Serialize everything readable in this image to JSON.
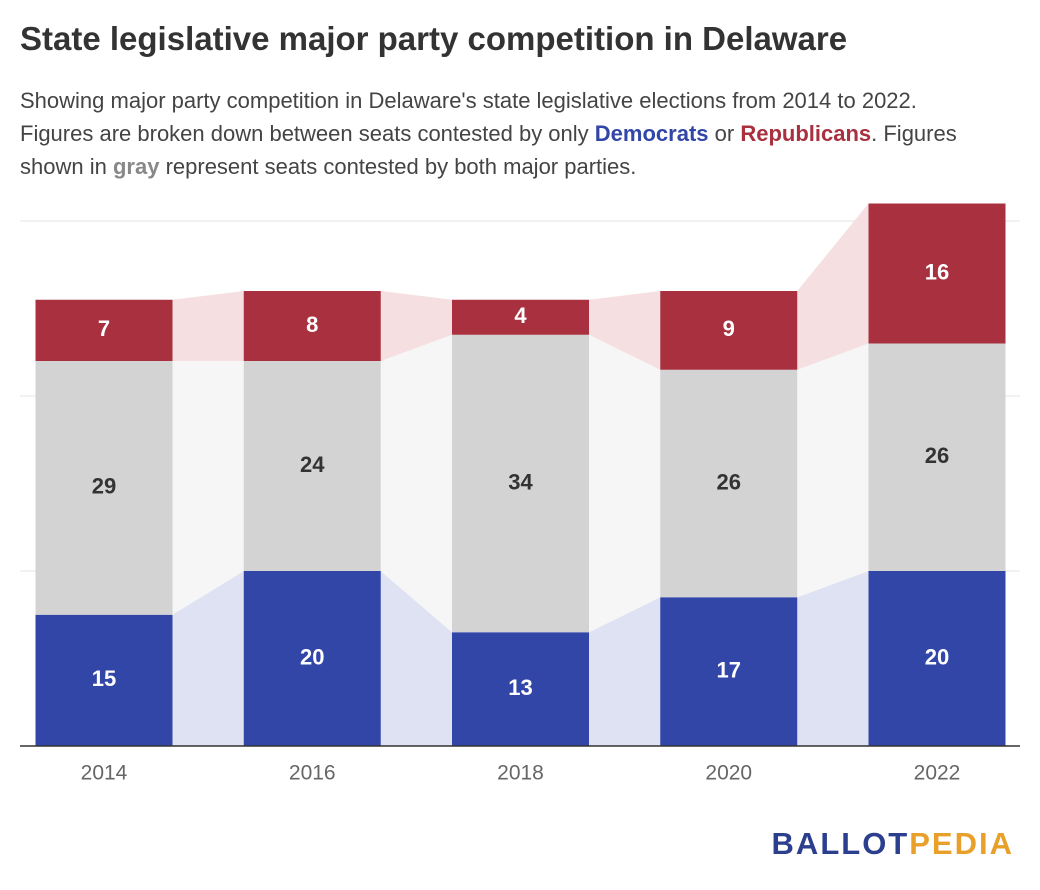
{
  "chart_data": {
    "type": "stacked-bar",
    "title": "State legislative major party competition in Delaware",
    "subtitle_parts": [
      "Showing major party competition in Delaware's state legislative elections from 2014 to 2022.",
      "Figures are broken down between seats contested by only",
      "or",
      ". Figures",
      "shown in",
      "represent seats contested by both major parties."
    ],
    "categories": [
      "2014",
      "2016",
      "2018",
      "2020",
      "2022"
    ],
    "series": [
      {
        "name": "Democrats",
        "color": "#3246a8",
        "band_color": "#dfe2f2",
        "label_color": "#ffffff",
        "values": [
          15,
          20,
          13,
          17,
          20
        ]
      },
      {
        "name": "gray",
        "color": "#d3d3d3",
        "band_color": "#f6f6f6",
        "label_color": "#333333",
        "values": [
          29,
          24,
          34,
          26,
          26
        ]
      },
      {
        "name": "Republicans",
        "color": "#a8303f",
        "band_color": "#f5dfe1",
        "label_color": "#ffffff",
        "values": [
          7,
          8,
          4,
          9,
          16
        ]
      }
    ],
    "ylim": [
      0,
      60
    ],
    "yticks": [
      0,
      20,
      40,
      60
    ],
    "grid": true,
    "logo": [
      "BALLOT",
      "PEDIA"
    ]
  }
}
